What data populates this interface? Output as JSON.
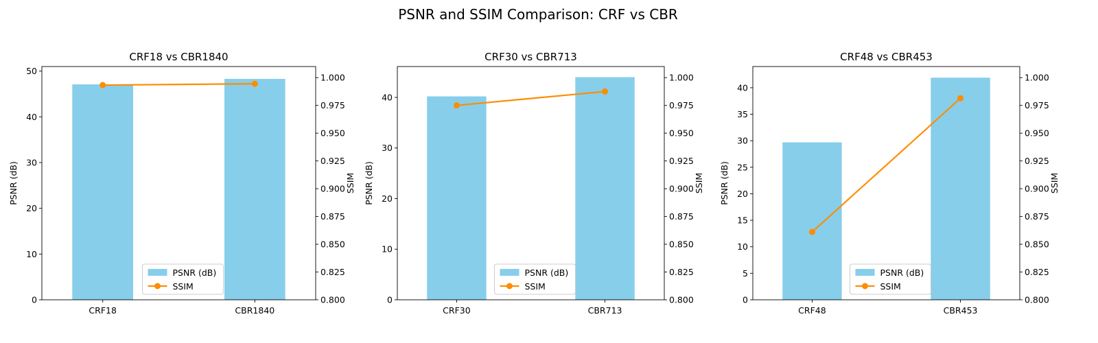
{
  "suptitle": "PSNR and SSIM Comparison: CRF vs CBR",
  "colors": {
    "bar": "#87CEEB",
    "line": "#FF8C00",
    "axis": "#000000"
  },
  "chart_data": [
    {
      "type": "bar",
      "title": "CRF18 vs CBR1840",
      "categories": [
        "CRF18",
        "CBR1840"
      ],
      "ylabel": "PSNR (dB)",
      "ylabel_right": "SSIM",
      "ylim": [
        0,
        51
      ],
      "yticks": [
        0,
        10,
        20,
        30,
        40,
        50
      ],
      "ylim_right": [
        0.8,
        1.01
      ],
      "yticks_right": [
        0.8,
        0.825,
        0.85,
        0.875,
        0.9,
        0.925,
        0.95,
        0.975,
        1.0
      ],
      "series": [
        {
          "name": "PSNR (dB)",
          "axis": "left",
          "kind": "bar",
          "values": [
            47.1,
            48.3
          ]
        },
        {
          "name": "SSIM",
          "axis": "right",
          "kind": "line",
          "values": [
            0.9933,
            0.9945
          ]
        }
      ],
      "legend": "lower-center",
      "grid": false
    },
    {
      "type": "bar",
      "title": "CRF30 vs CBR713",
      "categories": [
        "CRF30",
        "CBR713"
      ],
      "ylabel": "PSNR (dB)",
      "ylabel_right": "SSIM",
      "ylim": [
        0,
        46.1
      ],
      "yticks": [
        0,
        10,
        20,
        30,
        40
      ],
      "ylim_right": [
        0.8,
        1.01
      ],
      "yticks_right": [
        0.8,
        0.825,
        0.85,
        0.875,
        0.9,
        0.925,
        0.95,
        0.975,
        1.0
      ],
      "series": [
        {
          "name": "PSNR (dB)",
          "axis": "left",
          "kind": "bar",
          "values": [
            40.2,
            44.0
          ]
        },
        {
          "name": "SSIM",
          "axis": "right",
          "kind": "line",
          "values": [
            0.975,
            0.9875
          ]
        }
      ],
      "legend": "lower-center",
      "grid": false
    },
    {
      "type": "bar",
      "title": "CRF48 vs CBR453",
      "categories": [
        "CRF48",
        "CBR453"
      ],
      "ylabel": "PSNR (dB)",
      "ylabel_right": "SSIM",
      "ylim": [
        0,
        44
      ],
      "yticks": [
        0,
        5,
        10,
        15,
        20,
        25,
        30,
        35,
        40
      ],
      "ylim_right": [
        0.8,
        1.01
      ],
      "yticks_right": [
        0.8,
        0.825,
        0.85,
        0.875,
        0.9,
        0.925,
        0.95,
        0.975,
        1.0
      ],
      "series": [
        {
          "name": "PSNR (dB)",
          "axis": "left",
          "kind": "bar",
          "values": [
            29.7,
            41.9
          ]
        },
        {
          "name": "SSIM",
          "axis": "right",
          "kind": "line",
          "values": [
            0.861,
            0.9815
          ]
        }
      ],
      "legend": "lower-center",
      "grid": false
    }
  ]
}
